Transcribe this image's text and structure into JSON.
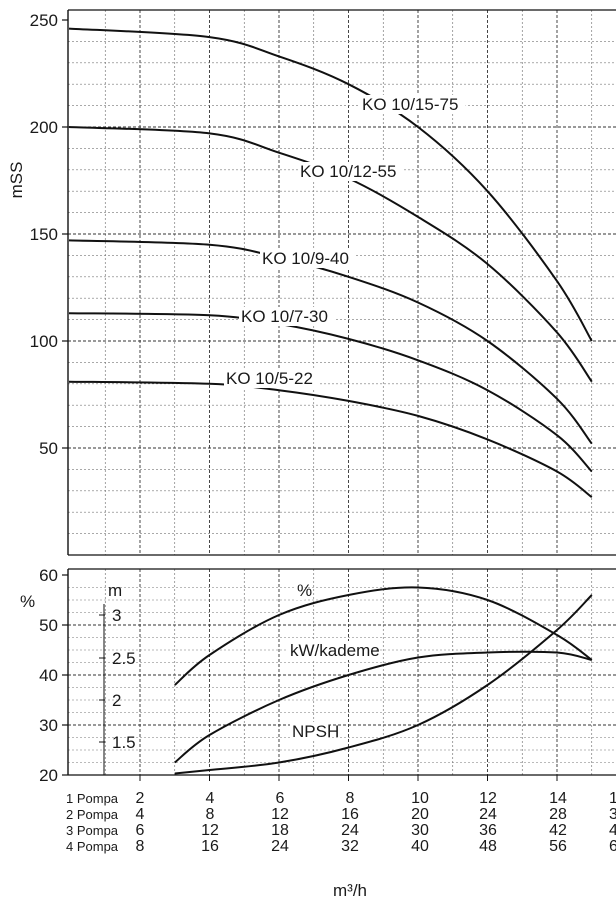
{
  "chart_data": [
    {
      "type": "line",
      "ylabel": "mSS",
      "ylim": [
        0,
        250
      ],
      "xlim": [
        0,
        16
      ],
      "y_ticks": [
        "250",
        "200",
        "150",
        "100",
        "50"
      ],
      "grid": "dashed major and minor",
      "series": [
        {
          "name": "KO 10/15-75",
          "x": [
            3,
            4,
            6,
            8,
            10,
            12,
            14,
            15
          ],
          "y": [
            246,
            242,
            233,
            220,
            200,
            170,
            128,
            100
          ]
        },
        {
          "name": "KO 10/12-55",
          "x": [
            3,
            4,
            6,
            8,
            10,
            12,
            14,
            15
          ],
          "y": [
            200,
            197,
            188,
            176,
            158,
            136,
            104,
            81
          ]
        },
        {
          "name": "KO 10/9-40",
          "x": [
            3,
            4,
            6,
            8,
            10,
            12,
            14,
            15
          ],
          "y": [
            147,
            145,
            139,
            130,
            118,
            100,
            73,
            52
          ]
        },
        {
          "name": "KO 10/7-30",
          "x": [
            3,
            4,
            6,
            8,
            10,
            12,
            14,
            15
          ],
          "y": [
            113,
            112,
            108,
            101,
            91,
            77,
            56,
            39
          ]
        },
        {
          "name": "KO 10/5-22",
          "x": [
            3,
            4,
            6,
            8,
            10,
            12,
            14,
            15
          ],
          "y": [
            81,
            80,
            77,
            72,
            65,
            54,
            39,
            27
          ]
        }
      ]
    },
    {
      "type": "line",
      "ylabel_left": "%",
      "ylabel_right_axis": "m",
      "ylim": [
        20,
        60
      ],
      "y_ticks": [
        "60",
        "50",
        "40",
        "30",
        "20"
      ],
      "m_ticks": [
        "3",
        "2.5",
        "2",
        "1.5"
      ],
      "series": [
        {
          "name": "%",
          "x": [
            3,
            4,
            6,
            8,
            10,
            12,
            14,
            15
          ],
          "y": [
            38,
            44,
            52,
            56,
            57.5,
            55,
            48,
            43
          ]
        },
        {
          "name": "kW/kademe",
          "x": [
            3,
            4,
            6,
            8,
            10,
            12,
            14,
            15
          ],
          "y": [
            22.5,
            28,
            35,
            40,
            43.5,
            44.5,
            44.5,
            43
          ]
        },
        {
          "name": "NPSH",
          "x": [
            3,
            4,
            6,
            8,
            10,
            12,
            14,
            15
          ],
          "y": [
            20.3,
            21,
            22.5,
            25.5,
            30,
            38,
            49,
            56
          ]
        }
      ]
    }
  ],
  "pump_table": {
    "xlabel": "m³/h",
    "rows": [
      {
        "label": "1 Pompa",
        "values": [
          "2",
          "4",
          "6",
          "8",
          "10",
          "12",
          "14",
          "1"
        ]
      },
      {
        "label": "2 Pompa",
        "values": [
          "4",
          "8",
          "12",
          "16",
          "20",
          "24",
          "28",
          "3"
        ]
      },
      {
        "label": "3 Pompa",
        "values": [
          "6",
          "12",
          "18",
          "24",
          "30",
          "36",
          "42",
          "4"
        ]
      },
      {
        "label": "4 Pompa",
        "values": [
          "8",
          "16",
          "24",
          "32",
          "40",
          "48",
          "56",
          "6"
        ]
      }
    ]
  }
}
